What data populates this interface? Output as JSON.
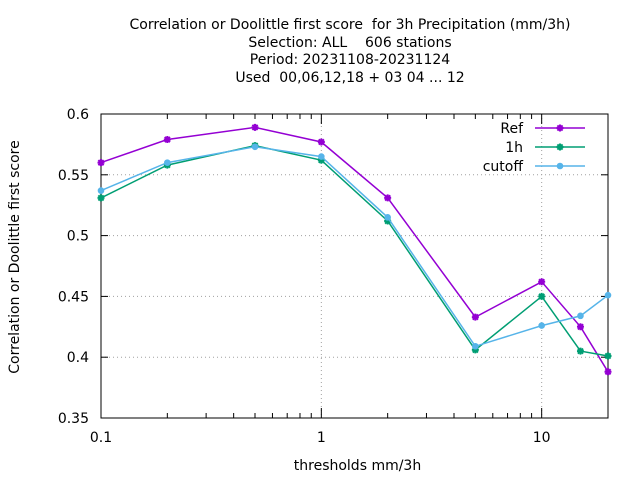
{
  "chart_data": {
    "type": "line",
    "title_lines": [
      "Correlation or Doolittle first score  for 3h Precipitation (mm/3h)",
      "Selection: ALL    606 stations",
      "Period: 20231108-20231124",
      "Used  00,06,12,18 + 03 04 ... 12"
    ],
    "xlabel": "thresholds mm/3h",
    "ylabel": "Correlation or Doolittle first score",
    "x_scale": "log",
    "xlim": [
      0.1,
      20
    ],
    "ylim": [
      0.35,
      0.6
    ],
    "x_ticks": [
      {
        "value": 0.1,
        "label": "0.1"
      },
      {
        "value": 1,
        "label": "1"
      },
      {
        "value": 10,
        "label": "10"
      }
    ],
    "y_ticks": [
      {
        "value": 0.35,
        "label": "0.35"
      },
      {
        "value": 0.4,
        "label": "0.4"
      },
      {
        "value": 0.45,
        "label": "0.45"
      },
      {
        "value": 0.5,
        "label": "0.5"
      },
      {
        "value": 0.55,
        "label": "0.55"
      },
      {
        "value": 0.6,
        "label": "0.6"
      }
    ],
    "grid": true,
    "legend_position": "top-right",
    "x": [
      0.1,
      0.2,
      0.5,
      1,
      2,
      5,
      10,
      15,
      20
    ],
    "series": [
      {
        "name": "Ref",
        "color": "#9400d3",
        "marker": "star",
        "values": [
          0.56,
          0.579,
          0.589,
          0.577,
          0.531,
          0.433,
          0.462,
          0.425,
          0.388
        ]
      },
      {
        "name": "1h",
        "color": "#009e73",
        "marker": "star",
        "values": [
          0.531,
          0.558,
          0.574,
          0.562,
          0.512,
          0.406,
          0.45,
          0.405,
          0.401
        ]
      },
      {
        "name": "cutoff",
        "color": "#56b4e9",
        "marker": "circle",
        "values": [
          0.537,
          0.56,
          0.573,
          0.565,
          0.515,
          0.409,
          0.426,
          0.434,
          0.451
        ]
      }
    ]
  }
}
